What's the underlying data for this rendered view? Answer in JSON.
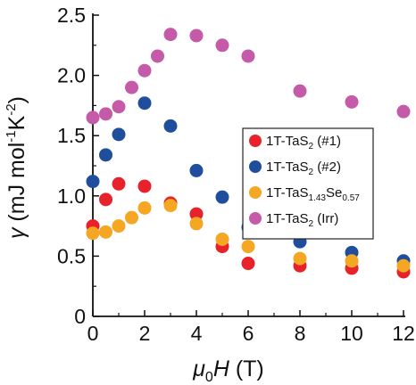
{
  "chart_data": {
    "type": "scatter",
    "title": "",
    "xlabel": {
      "main": "μ",
      "sub": "0",
      "var": "H",
      "unit": " (T)"
    },
    "ylabel": {
      "symbol": "γ",
      "text": " (mJ mol",
      "exp1": "-1",
      "mid": "K",
      "exp2": "-2",
      "end": ")"
    },
    "xlim": [
      0,
      12
    ],
    "ylim": [
      0,
      2.5
    ],
    "x_ticks": [
      0,
      2,
      4,
      6,
      8,
      10,
      12
    ],
    "x_tick_labels": [
      "0",
      "2",
      "4",
      "6",
      "8",
      "10",
      "12"
    ],
    "y_ticks": [
      0,
      0.5,
      1.0,
      1.5,
      2.0,
      2.5
    ],
    "y_tick_labels": [
      "0",
      "0.5",
      "1.0",
      "1.5",
      "2.0",
      "2.5"
    ],
    "legend_position": "middle-right",
    "series": [
      {
        "name": "1T-TaS2 (#1)",
        "color": "#e8222b",
        "x": [
          0,
          0.5,
          1,
          2,
          3,
          4,
          5,
          6,
          8,
          10,
          12
        ],
        "y": [
          0.75,
          0.97,
          1.1,
          1.08,
          0.94,
          0.85,
          0.58,
          0.44,
          0.42,
          0.4,
          0.37
        ]
      },
      {
        "name": "1T-TaS2 (#2)",
        "color": "#1f4e9c",
        "x": [
          0,
          0.5,
          1,
          2,
          3,
          4,
          5,
          6,
          8,
          10,
          12
        ],
        "y": [
          1.12,
          1.34,
          1.51,
          1.77,
          1.58,
          1.21,
          0.99,
          0.74,
          0.62,
          0.53,
          0.46
        ]
      },
      {
        "name": "1T-TaS1.43Se0.57",
        "color": "#f5a623",
        "x": [
          0,
          0.5,
          1,
          1.5,
          2,
          3,
          4,
          5,
          6,
          8,
          10,
          12
        ],
        "y": [
          0.69,
          0.7,
          0.75,
          0.82,
          0.9,
          0.92,
          0.77,
          0.64,
          0.58,
          0.48,
          0.46,
          0.42
        ]
      },
      {
        "name": "1T-TaS2 (Irr)",
        "color": "#c45aa8",
        "x": [
          0,
          0.5,
          1,
          1.5,
          2,
          2.5,
          3,
          4,
          5,
          6,
          8,
          10,
          12
        ],
        "y": [
          1.65,
          1.68,
          1.74,
          1.9,
          2.04,
          2.16,
          2.34,
          2.33,
          2.25,
          2.16,
          1.87,
          1.78,
          1.7
        ]
      }
    ],
    "legend": [
      {
        "base": "1T-TaS",
        "sub": "2",
        "mid": "",
        "sub2": "",
        "tail": " (#1)",
        "color": "#e8222b"
      },
      {
        "base": "1T-TaS",
        "sub": "2",
        "mid": "",
        "sub2": "",
        "tail": " (#2)",
        "color": "#1f4e9c"
      },
      {
        "base": "1T-TaS",
        "sub": "1.43",
        "mid": "Se",
        "sub2": "0.57",
        "tail": "",
        "color": "#f5a623"
      },
      {
        "base": "1T-TaS",
        "sub": "2",
        "mid": "",
        "sub2": "",
        "tail": " (Irr)",
        "color": "#c45aa8"
      }
    ]
  }
}
